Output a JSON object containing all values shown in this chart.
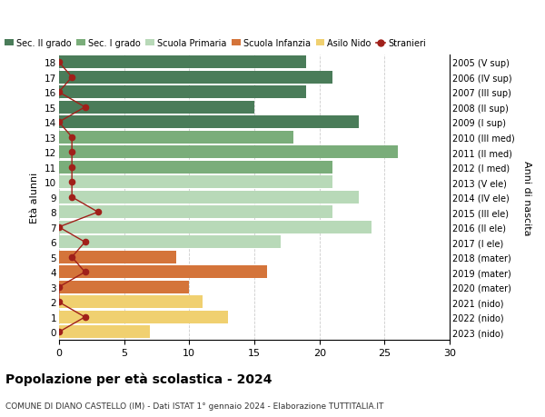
{
  "ages": [
    18,
    17,
    16,
    15,
    14,
    13,
    12,
    11,
    10,
    9,
    8,
    7,
    6,
    5,
    4,
    3,
    2,
    1,
    0
  ],
  "years": [
    "2005 (V sup)",
    "2006 (IV sup)",
    "2007 (III sup)",
    "2008 (II sup)",
    "2009 (I sup)",
    "2010 (III med)",
    "2011 (II med)",
    "2012 (I med)",
    "2013 (V ele)",
    "2014 (IV ele)",
    "2015 (III ele)",
    "2016 (II ele)",
    "2017 (I ele)",
    "2018 (mater)",
    "2019 (mater)",
    "2020 (mater)",
    "2021 (nido)",
    "2022 (nido)",
    "2023 (nido)"
  ],
  "bar_values": [
    19,
    21,
    19,
    15,
    23,
    18,
    26,
    21,
    21,
    23,
    21,
    24,
    17,
    9,
    16,
    10,
    11,
    13,
    7
  ],
  "bar_colors": [
    "#4a7c59",
    "#4a7c59",
    "#4a7c59",
    "#4a7c59",
    "#4a7c59",
    "#7aad7a",
    "#7aad7a",
    "#7aad7a",
    "#b8d9b8",
    "#b8d9b8",
    "#b8d9b8",
    "#b8d9b8",
    "#b8d9b8",
    "#d4743a",
    "#d4743a",
    "#d4743a",
    "#f0d070",
    "#f0d070",
    "#f0d070"
  ],
  "stranieri_values": [
    0,
    1,
    0,
    2,
    0,
    1,
    1,
    1,
    1,
    1,
    3,
    0,
    2,
    1,
    2,
    0,
    0,
    2,
    0
  ],
  "stranieri_color": "#a0201a",
  "legend_labels": [
    "Sec. II grado",
    "Sec. I grado",
    "Scuola Primaria",
    "Scuola Infanzia",
    "Asilo Nido",
    "Stranieri"
  ],
  "legend_colors": [
    "#4a7c59",
    "#7aad7a",
    "#b8d9b8",
    "#d4743a",
    "#f0d070",
    "#a0201a"
  ],
  "ylabel_left": "Età alunni",
  "ylabel_right": "Anni di nascita",
  "title": "Popolazione per età scolastica - 2024",
  "subtitle": "COMUNE DI DIANO CASTELLO (IM) - Dati ISTAT 1° gennaio 2024 - Elaborazione TUTTITALIA.IT",
  "xlim": [
    0,
    30
  ],
  "xticks": [
    0,
    5,
    10,
    15,
    20,
    25,
    30
  ],
  "background_color": "#ffffff",
  "grid_color": "#cccccc"
}
